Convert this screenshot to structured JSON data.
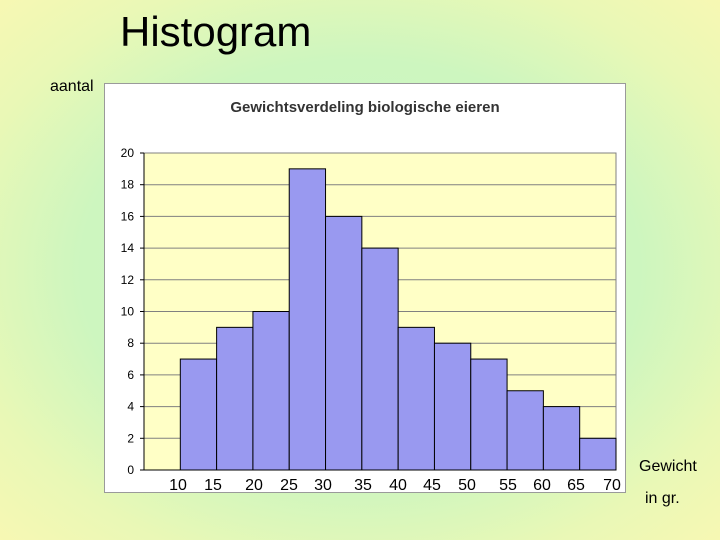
{
  "slide": {
    "title": "Histogram",
    "y_axis_caption": "aantal",
    "x_axis_caption_line1": "Gewicht",
    "x_axis_caption_line2": "in gr."
  },
  "chart_data": {
    "type": "bar",
    "title": "Gewichtsverdeling biologische eieren",
    "bin_edges": [
      10,
      15,
      20,
      25,
      30,
      35,
      40,
      45,
      50,
      55,
      60,
      65,
      70
    ],
    "values": [
      7,
      9,
      10,
      19,
      16,
      14,
      9,
      8,
      7,
      5,
      4,
      2
    ],
    "y_ticks": [
      0,
      2,
      4,
      6,
      8,
      10,
      12,
      14,
      16,
      18,
      20
    ],
    "ylim": [
      0,
      20
    ],
    "grid": true,
    "bar_color": "#9999f0",
    "plot_background": "#ffffc6"
  }
}
